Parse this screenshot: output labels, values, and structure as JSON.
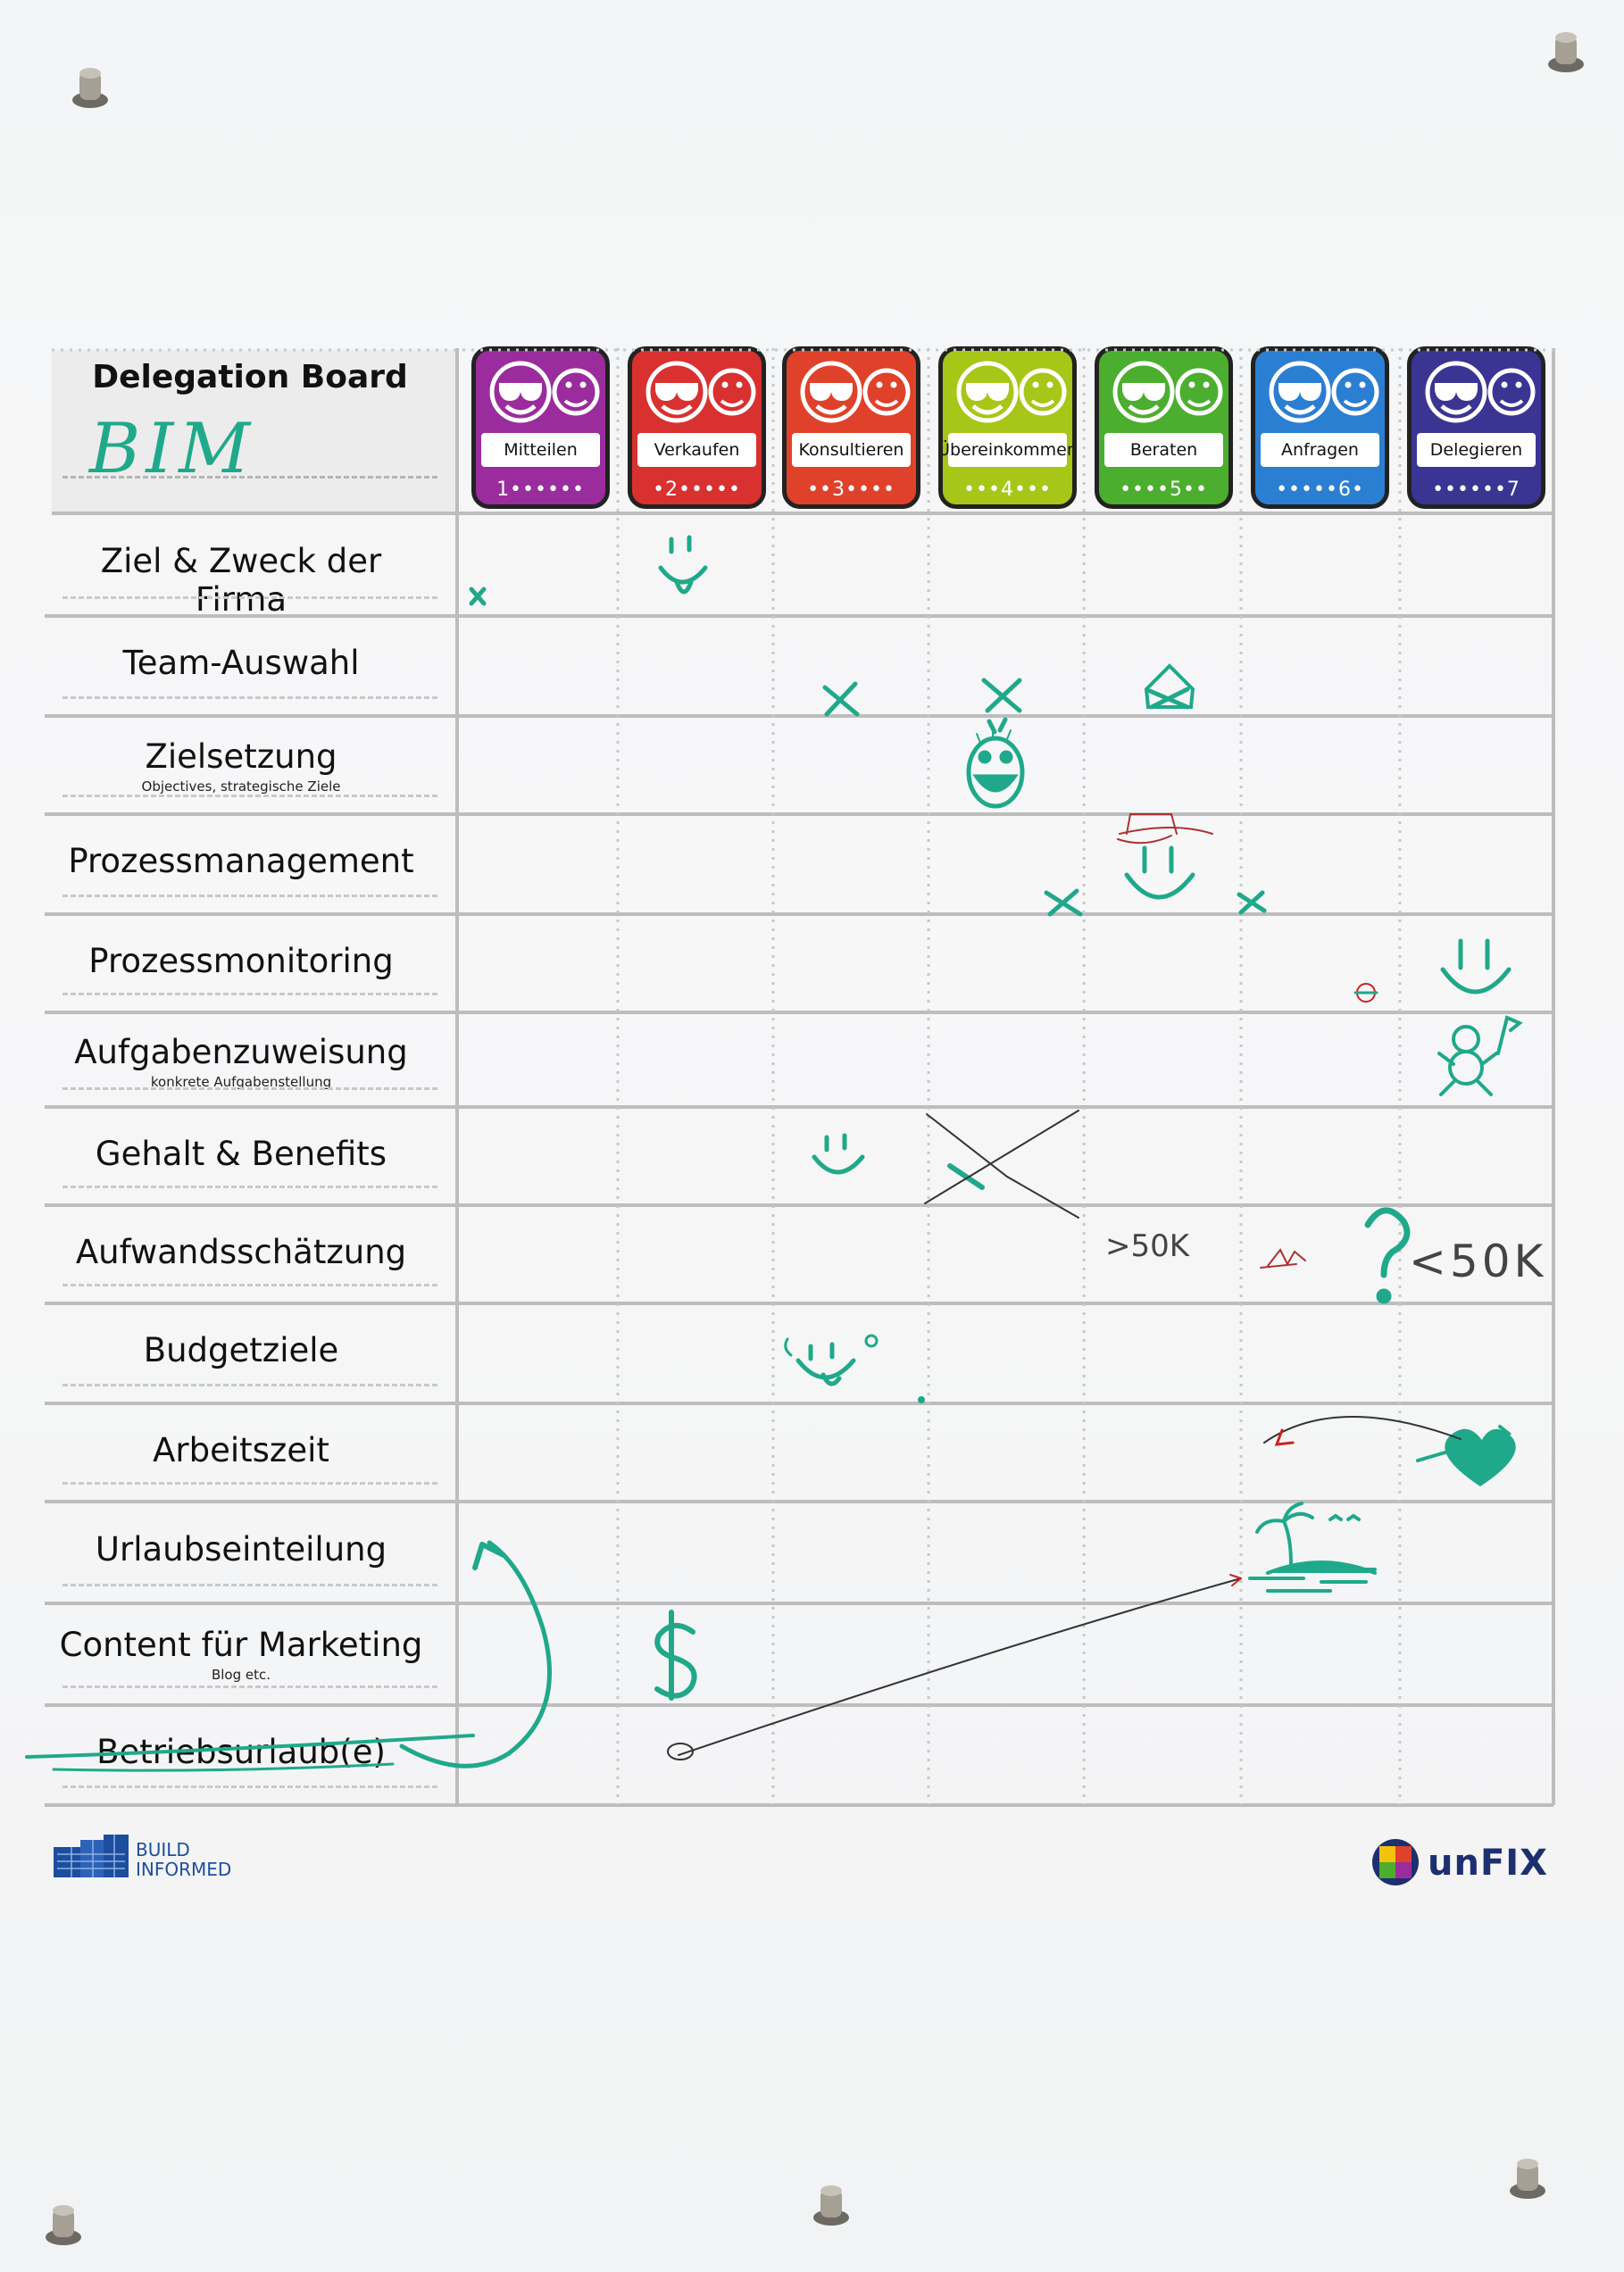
{
  "board": {
    "title": "Delegation Board",
    "team": "BIM"
  },
  "levels": [
    {
      "label": "Mitteilen",
      "dots": "1••••••",
      "color": "#9b2c9d"
    },
    {
      "label": "Verkaufen",
      "dots": "•2•••••",
      "color": "#d93030"
    },
    {
      "label": "Konsultieren",
      "dots": "••3••••",
      "color": "#e0412a"
    },
    {
      "label": "Übereinkommen",
      "dots": "•••4•••",
      "color": "#a7c617"
    },
    {
      "label": "Beraten",
      "dots": "••••5••",
      "color": "#4cae2e"
    },
    {
      "label": "Anfragen",
      "dots": "•••••6•",
      "color": "#2b7fd3"
    },
    {
      "label": "Delegieren",
      "dots": "••••••7",
      "color": "#3a3592"
    }
  ],
  "rows": [
    {
      "label": "Ziel & Zweck der Firma",
      "sub": ""
    },
    {
      "label": "Team-Auswahl",
      "sub": ""
    },
    {
      "label": "Zielsetzung",
      "sub": "Objectives, strategische Ziele"
    },
    {
      "label": "Prozessmanagement",
      "sub": ""
    },
    {
      "label": "Prozessmonitoring",
      "sub": ""
    },
    {
      "label": "Aufgabenzuweisung",
      "sub": "konkrete Aufgabenstellung"
    },
    {
      "label": "Gehalt & Benefits",
      "sub": ""
    },
    {
      "label": "Aufwandsschätzung",
      "sub": ""
    },
    {
      "label": "Budgetziele",
      "sub": ""
    },
    {
      "label": "Arbeitszeit",
      "sub": ""
    },
    {
      "label": "Urlaubseinteilung",
      "sub": ""
    },
    {
      "label": "Content für Marketing",
      "sub": "Blog etc."
    },
    {
      "label": "Betriebsurlaub(e)",
      "sub": ""
    }
  ],
  "annotations": {
    "estimate_high": ">50K",
    "estimate_low": "<50K",
    "question": "?"
  },
  "logos": {
    "left_line1": "BUILD",
    "left_line2": "INFORMED",
    "right": "unFIX"
  },
  "colors": {
    "marker_green": "#1fa98a",
    "grid_line": "#bdbdbd",
    "dotted_line": "#c8c8c8"
  }
}
